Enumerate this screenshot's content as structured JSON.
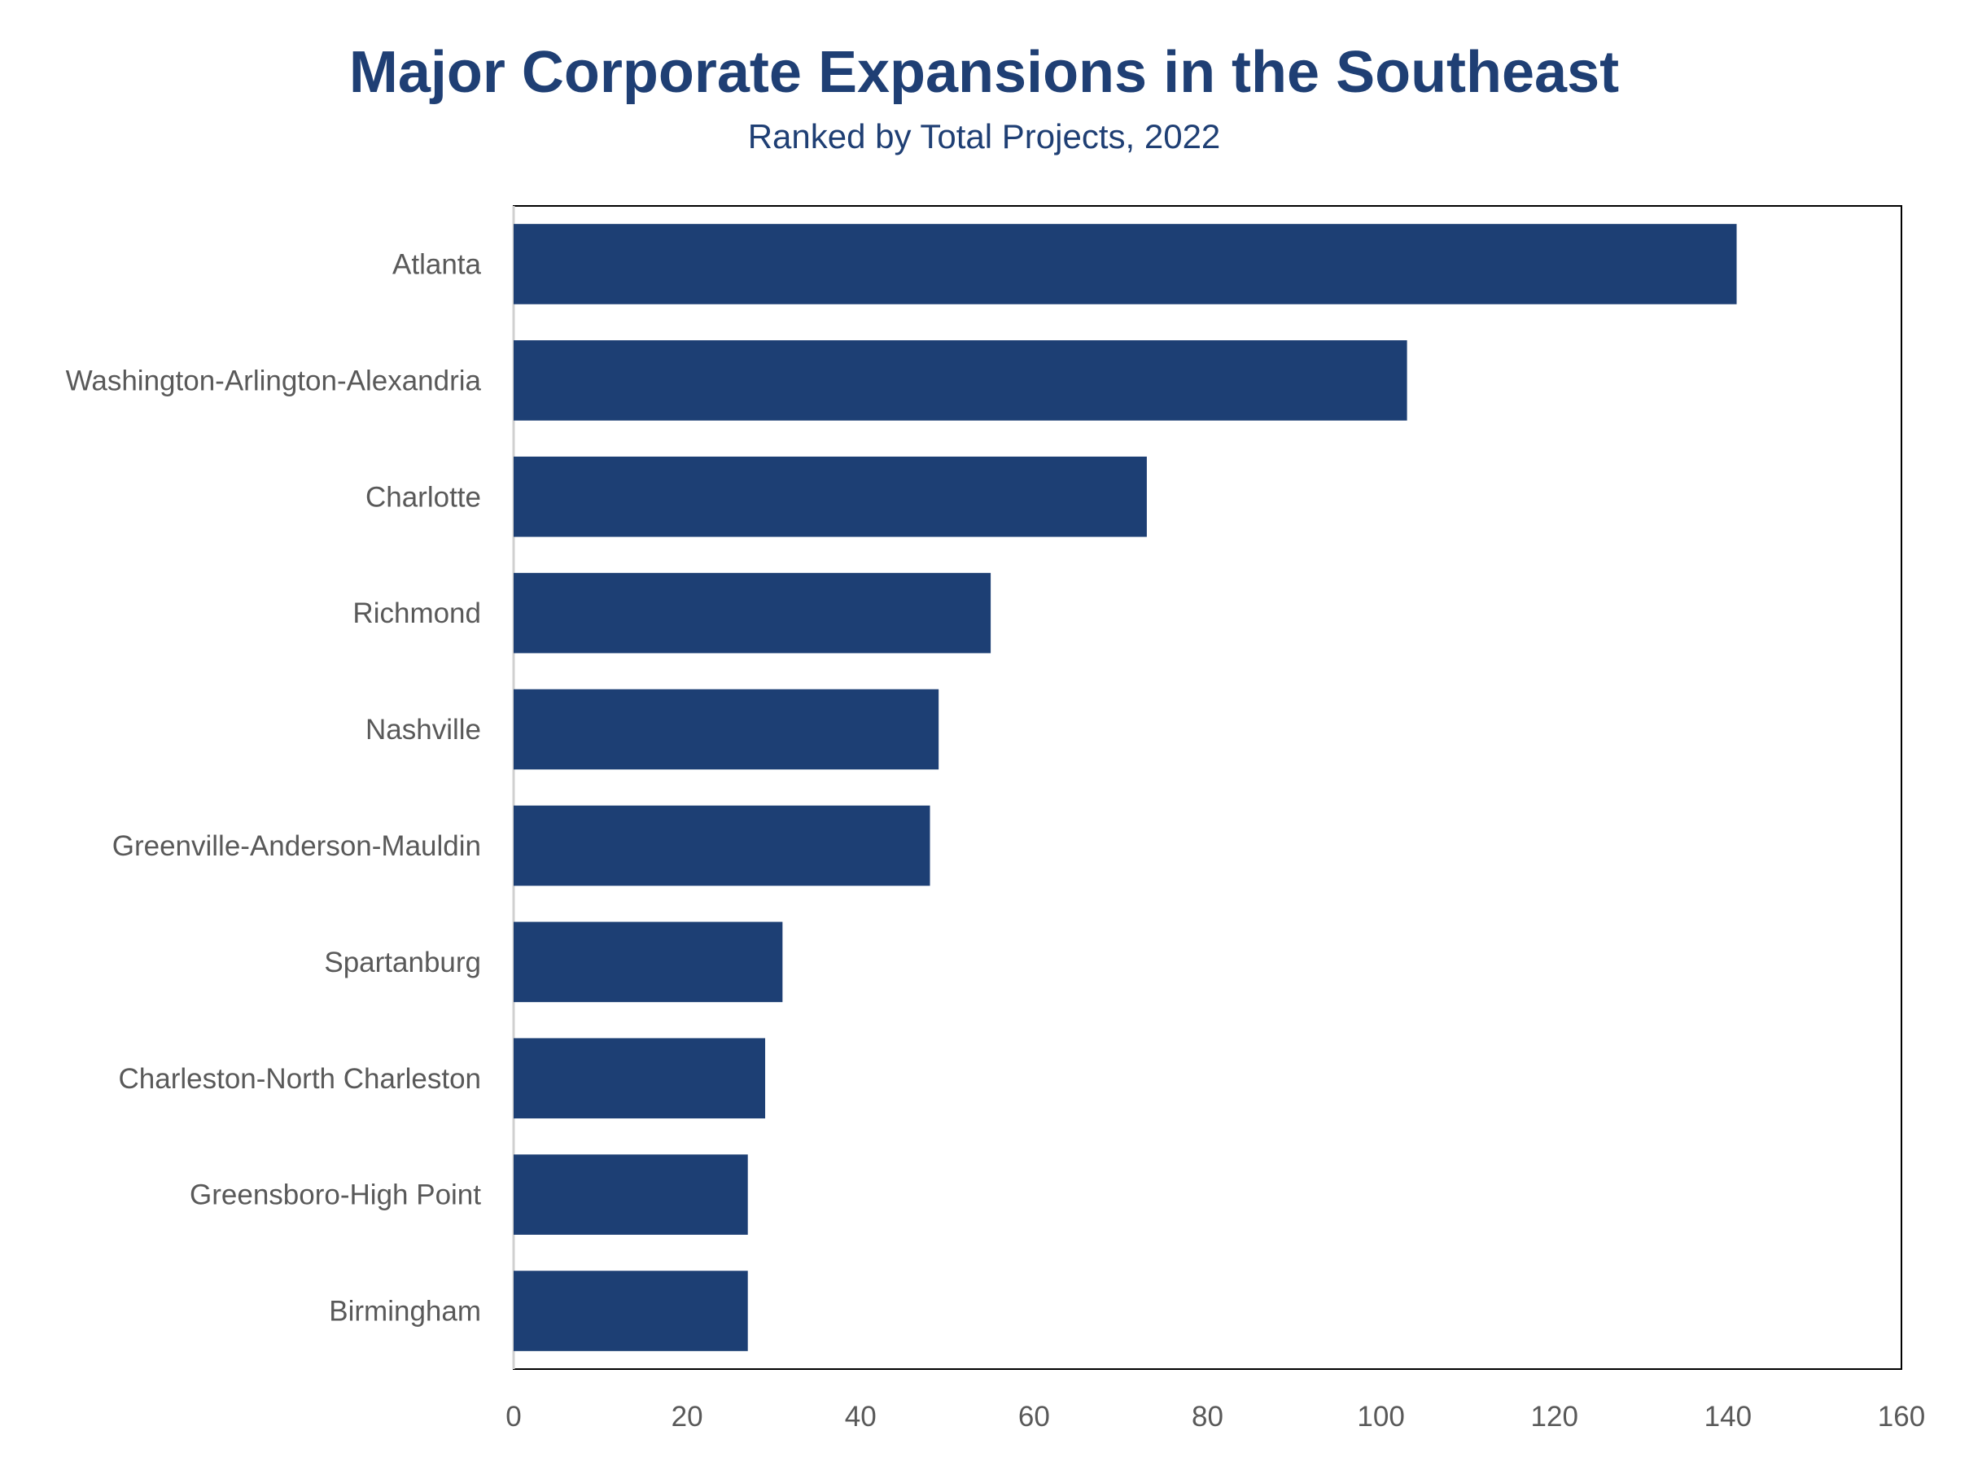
{
  "chart_data": {
    "type": "bar",
    "orientation": "horizontal",
    "title": "Major Corporate Expansions in the Southeast",
    "subtitle": "Ranked by Total Projects, 2022",
    "xlabel": "",
    "ylabel": "",
    "categories": [
      "Atlanta",
      "Washington-Arlington-Alexandria",
      "Charlotte",
      "Richmond",
      "Nashville",
      "Greenville-Anderson-Mauldin",
      "Spartanburg",
      "Charleston-North Charleston",
      "Greensboro-High Point",
      "Birmingham"
    ],
    "values": [
      141,
      103,
      73,
      55,
      49,
      48,
      31,
      29,
      27,
      27
    ],
    "xlim": [
      0,
      160
    ],
    "xticks": [
      "0",
      "20",
      "40",
      "60",
      "80",
      "100",
      "120",
      "140",
      "160"
    ],
    "grid": false,
    "legend": "none",
    "colors": {
      "bar": "#1d3f74",
      "title": "#1f3f74",
      "text": "#595959"
    }
  }
}
